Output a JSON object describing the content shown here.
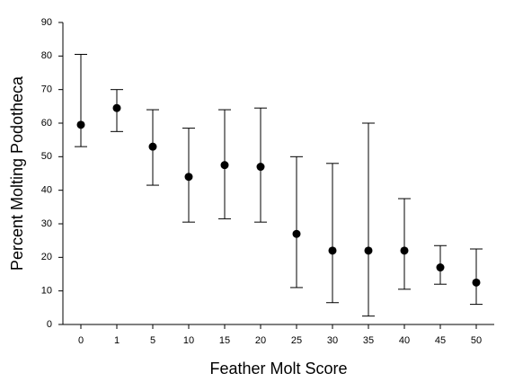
{
  "chart_data": {
    "type": "errorbar",
    "xlabel": "Feather Molt Score",
    "ylabel": "Percent Molting Podotheca",
    "categories": [
      "0",
      "1",
      "5",
      "10",
      "15",
      "20",
      "25",
      "30",
      "35",
      "40",
      "45",
      "50"
    ],
    "values": [
      59.5,
      64.5,
      53,
      44,
      47.5,
      47,
      27,
      22,
      22,
      22,
      17,
      12.5
    ],
    "upper": [
      80.5,
      70,
      64,
      58.5,
      64,
      64.5,
      50,
      48,
      60,
      37.5,
      23.5,
      22.5
    ],
    "lower": [
      53,
      57.5,
      41.5,
      30.5,
      31.5,
      30.5,
      11,
      6.5,
      2.5,
      10.5,
      12,
      6
    ],
    "color": "#000000",
    "ylim": [
      0,
      90
    ],
    "yticks": [
      0,
      10,
      20,
      30,
      40,
      50,
      60,
      70,
      80,
      90
    ]
  }
}
